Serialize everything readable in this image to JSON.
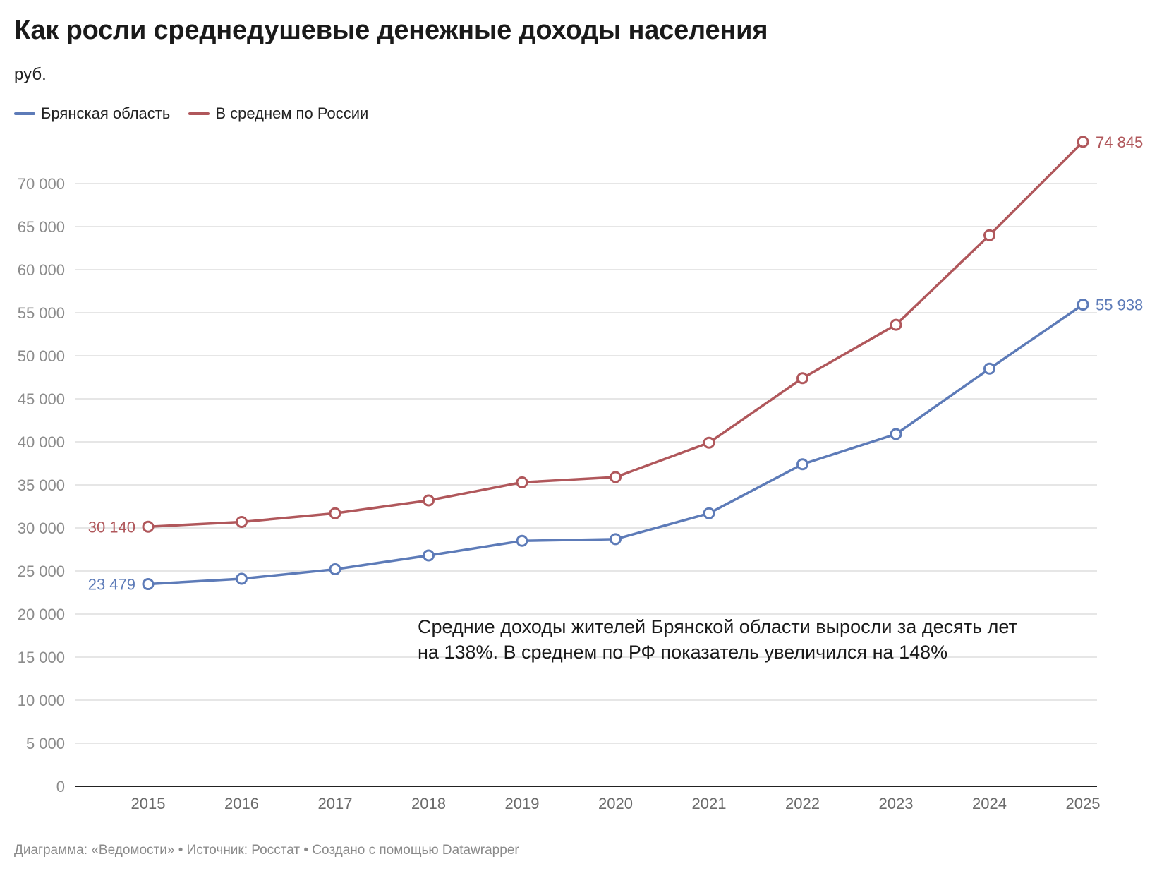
{
  "title": "Как росли среднедушевые денежные доходы населения",
  "subtitle": "руб.",
  "legend": [
    {
      "label": "Брянская область",
      "color": "#5d7bb8"
    },
    {
      "label": "В среднем по России",
      "color": "#b0575b"
    }
  ],
  "annotation": {
    "line1": "Средние доходы жителей Брянской области выросли за десять лет",
    "line2": "на 138%. В среднем по РФ показатель увеличился на 148%"
  },
  "footer": "Диаграмма: «Ведомости» • Источник: Росстат • Создано с помощью Datawrapper",
  "chart_data": {
    "type": "line",
    "title": "Как росли среднедушевые денежные доходы населения",
    "ylabel": "руб.",
    "xlabel": "",
    "x": [
      "2015",
      "2016",
      "2017",
      "2018",
      "2019",
      "2020",
      "2021",
      "2022",
      "2023",
      "2024",
      "2025"
    ],
    "ylim": [
      0,
      70000
    ],
    "yticks": [
      0,
      5000,
      10000,
      15000,
      20000,
      25000,
      30000,
      35000,
      40000,
      45000,
      50000,
      55000,
      60000,
      65000,
      70000
    ],
    "ytick_labels": [
      "0",
      "5 000",
      "10 000",
      "15 000",
      "20 000",
      "25 000",
      "30 000",
      "35 000",
      "40 000",
      "45 000",
      "50 000",
      "55 000",
      "60 000",
      "65 000",
      "70 000"
    ],
    "grid": true,
    "legend_position": "top-left",
    "series": [
      {
        "name": "Брянская область",
        "color": "#5d7bb8",
        "values": [
          23479,
          24100,
          25200,
          26800,
          28500,
          28700,
          31700,
          37400,
          40900,
          48500,
          55938
        ],
        "labels": {
          "first": "23 479",
          "last": "55 938"
        }
      },
      {
        "name": "В среднем по России",
        "color": "#b0575b",
        "values": [
          30140,
          30700,
          31700,
          33200,
          35300,
          35900,
          39900,
          47400,
          53600,
          64000,
          74845
        ],
        "labels": {
          "first": "30 140",
          "last": "74 845"
        }
      }
    ]
  }
}
